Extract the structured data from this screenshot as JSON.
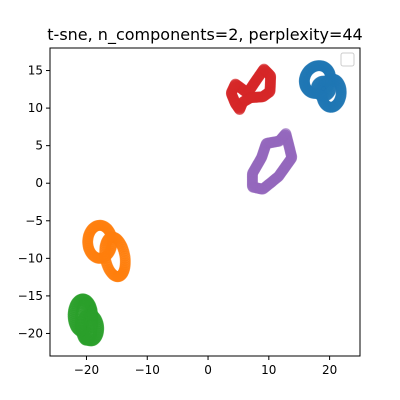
{
  "chart_data": {
    "type": "scatter",
    "title": "t-sne, n_components=2, perplexity=44",
    "xlabel": "",
    "ylabel": "",
    "xlim": [
      -26,
      25
    ],
    "ylim": [
      -23,
      18
    ],
    "x_ticks": [
      -20,
      -10,
      0,
      10,
      20
    ],
    "y_ticks": [
      -20,
      -15,
      -10,
      -5,
      0,
      5,
      10,
      15
    ],
    "x_tick_labels": [
      "−20",
      "−10",
      "0",
      "10",
      "20"
    ],
    "y_tick_labels": [
      "−20",
      "−15",
      "−10",
      "−5",
      "0",
      "5",
      "10",
      "15"
    ],
    "grid": false,
    "legend": {
      "placement": "top-right",
      "entries": []
    },
    "series": [
      {
        "color": "#1f77b4",
        "loops": [
          {
            "cx": 18.0,
            "cy": 13.8,
            "rx": 2.2,
            "ry": 1.8,
            "rot": 20,
            "n": 60
          },
          {
            "cx": 20.3,
            "cy": 12.0,
            "rx": 1.6,
            "ry": 1.9,
            "rot": -10,
            "n": 50
          },
          {
            "cx": 19.0,
            "cy": 12.6,
            "rx": 1.2,
            "ry": 1.0,
            "rot": 0,
            "n": 30
          }
        ]
      },
      {
        "color": "#ff7f0e",
        "loops": [
          {
            "cx": -17.8,
            "cy": -7.8,
            "rx": 2.0,
            "ry": 2.2,
            "rot": 0,
            "n": 55
          },
          {
            "cx": -15.3,
            "cy": -9.8,
            "rx": 1.6,
            "ry": 2.7,
            "rot": 15,
            "n": 55
          }
        ]
      },
      {
        "color": "#2ca02c",
        "loops": [
          {
            "cx": -20.6,
            "cy": -17.6,
            "rx": 1.6,
            "ry": 2.2,
            "rot": 0,
            "n": 50
          },
          {
            "cx": -19.4,
            "cy": -19.2,
            "rx": 1.4,
            "ry": 1.8,
            "rot": 10,
            "n": 45
          },
          {
            "cx": -20.0,
            "cy": -18.4,
            "rx": 1.0,
            "ry": 2.5,
            "rot": 0,
            "n": 40
          }
        ]
      },
      {
        "color": "#d62728",
        "polyline": [
          [
            4.5,
            13.2
          ],
          [
            6.5,
            12.0
          ],
          [
            8.0,
            13.8
          ],
          [
            9.2,
            15.2
          ],
          [
            10.3,
            14.3
          ],
          [
            10.2,
            12.2
          ],
          [
            9.0,
            11.5
          ],
          [
            7.0,
            11.4
          ],
          [
            5.7,
            10.8
          ],
          [
            5.2,
            9.8
          ],
          [
            4.5,
            10.6
          ],
          [
            3.8,
            12.0
          ],
          [
            4.5,
            13.2
          ]
        ],
        "n": 95
      },
      {
        "color": "#9467bd",
        "polyline": [
          [
            12.8,
            6.6
          ],
          [
            13.8,
            3.4
          ],
          [
            11.6,
            0.9
          ],
          [
            9.0,
            -0.8
          ],
          [
            7.3,
            -0.5
          ],
          [
            7.3,
            1.3
          ],
          [
            8.8,
            3.4
          ],
          [
            9.6,
            5.3
          ],
          [
            11.7,
            5.6
          ],
          [
            12.8,
            6.6
          ]
        ],
        "n": 100
      }
    ]
  }
}
